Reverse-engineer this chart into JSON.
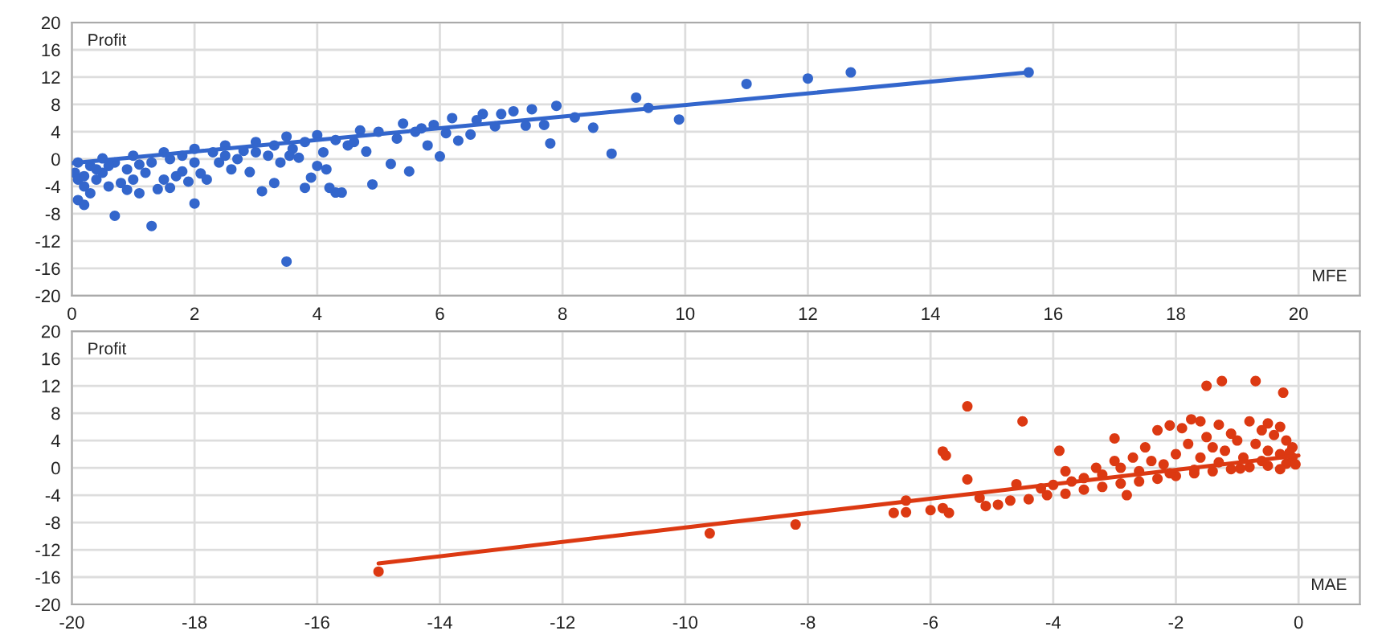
{
  "chart_data": [
    {
      "type": "scatter",
      "xlabel": "MFE",
      "ylabel": "Profit",
      "grid": true,
      "xlim": [
        0,
        21
      ],
      "xticks": [
        0,
        2,
        4,
        6,
        8,
        10,
        12,
        14,
        16,
        18,
        20
      ],
      "ylim": [
        -20,
        20
      ],
      "yticks": [
        -20,
        -16,
        -12,
        -8,
        -4,
        0,
        4,
        8,
        12,
        16,
        20
      ],
      "series": [
        {
          "marker": "circle",
          "color": "#3366cc",
          "x": [
            3.5,
            1.3,
            0.7,
            2.0,
            0.1,
            0.2,
            12.7,
            12.0,
            11.0,
            15.6,
            9.2,
            9.4,
            9.9,
            8.8,
            8.5,
            7.9,
            7.8,
            8.2,
            7.5,
            7.2,
            7.0,
            6.7,
            6.3,
            6.0,
            5.8,
            5.9,
            5.4,
            5.5,
            4.9,
            5.2,
            4.4,
            4.3,
            4.2,
            3.8,
            3.9,
            3.1,
            3.3,
            2.9,
            4.8,
            5.0,
            4.7,
            6.2,
            6.6,
            7.4,
            7.7,
            6.9,
            5.6,
            6.5,
            3.5,
            4.0,
            4.5,
            3.0,
            2.5,
            2.0,
            1.5,
            1.0,
            0.5,
            0.1,
            0.05,
            0.1,
            0.2,
            0.3,
            0.4,
            0.5,
            0.6,
            0.8,
            0.9,
            1.0,
            1.1,
            1.2,
            1.4,
            1.5,
            1.6,
            1.7,
            1.8,
            1.9,
            2.1,
            2.2,
            2.4,
            2.6,
            2.7,
            2.8,
            3.2,
            3.4,
            3.6,
            3.7,
            4.1,
            4.6,
            0.3,
            0.7,
            1.3,
            1.8,
            2.3,
            0.2,
            0.4,
            0.6,
            0.9,
            1.1,
            1.6,
            2.0,
            2.5,
            3.0,
            3.3,
            3.8,
            4.3,
            5.3,
            5.7,
            6.1,
            4.0,
            4.15,
            3.55
          ],
          "values": [
            -15,
            -9.8,
            -8.3,
            -6.5,
            -6.0,
            -6.7,
            12.7,
            11.8,
            11.0,
            12.7,
            9.0,
            7.5,
            5.8,
            0.8,
            4.6,
            7.8,
            2.3,
            6.1,
            7.3,
            7.0,
            6.6,
            6.6,
            2.7,
            0.4,
            2.0,
            5.0,
            5.2,
            -1.8,
            -3.7,
            -0.7,
            -4.9,
            -4.9,
            -4.2,
            -4.2,
            -2.7,
            -4.7,
            -3.5,
            -1.9,
            1.1,
            4.0,
            4.2,
            6.0,
            5.7,
            4.9,
            5.0,
            4.8,
            4.0,
            3.6,
            3.3,
            3.5,
            2.0,
            2.5,
            2.0,
            1.5,
            1.0,
            0.5,
            0.1,
            -0.5,
            -2,
            -3,
            -4,
            -5,
            -3,
            -2,
            -4,
            -3.5,
            -4.5,
            -3,
            -5,
            -2,
            -4.4,
            -3,
            -4.2,
            -2.5,
            -1.8,
            -3.3,
            -2.1,
            -3.0,
            -0.5,
            -1.5,
            0,
            1.2,
            0.5,
            -0.5,
            1.5,
            0.2,
            1.0,
            2.5,
            -1,
            -0.5,
            -0.5,
            0.5,
            1.0,
            -2.5,
            -1.5,
            -1,
            -1.5,
            -0.8,
            0,
            -0.5,
            0.5,
            1.0,
            2.0,
            2.5,
            2.8,
            3.0,
            4.5,
            3.8,
            -1.0,
            -1.5,
            0.5
          ]
        },
        {
          "type": "line",
          "marker": "none",
          "color": "#3366cc",
          "x": [
            0,
            15.6
          ],
          "values": [
            -0.6,
            12.7
          ]
        }
      ]
    },
    {
      "type": "scatter",
      "xlabel": "MAE",
      "ylabel": "Profit",
      "grid": true,
      "xlim": [
        -20,
        1
      ],
      "xticks": [
        -20,
        -18,
        -16,
        -14,
        -12,
        -10,
        -8,
        -6,
        -4,
        -2,
        0
      ],
      "ylim": [
        -20,
        20
      ],
      "yticks": [
        -20,
        -16,
        -12,
        -8,
        -4,
        0,
        4,
        8,
        12,
        16,
        20
      ],
      "series": [
        {
          "marker": "circle",
          "color": "#dc3912",
          "x": [
            -15,
            -9.6,
            -8.2,
            -6.6,
            -6.4,
            -6.4,
            -6.0,
            -5.8,
            -5.7,
            -5.8,
            -5.75,
            -5.4,
            -4.5,
            -3.9,
            -5.4,
            -5.2,
            -5.1,
            -4.9,
            -4.6,
            -3.8,
            -3.0,
            -3.0,
            -2.8,
            -1.5,
            -1.25,
            -0.7,
            -0.25,
            -1.75,
            -1.6,
            -2.3,
            -2.1,
            -1.3,
            -0.8,
            -0.5,
            -0.3,
            -4.7,
            -4.4,
            -4.1,
            -3.8,
            -3.5,
            -3.2,
            -2.9,
            -2.6,
            -2.3,
            -2.0,
            -1.7,
            -1.4,
            -1.1,
            -0.8,
            -0.5,
            -0.2,
            -0.1,
            -0.1,
            -0.2,
            -0.3,
            -0.5,
            -0.7,
            -0.9,
            -1.0,
            -1.2,
            -1.4,
            -1.6,
            -1.8,
            -2.0,
            -2.2,
            -2.4,
            -2.6,
            -2.9,
            -3.2,
            -3.5,
            -3.7,
            -4.0,
            -4.2,
            -0.05,
            -0.15,
            -0.4,
            -0.6,
            -1.1,
            -1.5,
            -1.9,
            -2.5,
            -2.7,
            -3.3,
            -0.3,
            -0.6,
            -1.3,
            -1.7,
            -2.1,
            -0.95
          ],
          "values": [
            -15.2,
            -9.6,
            -8.3,
            -6.6,
            -6.5,
            -4.8,
            -6.2,
            -5.9,
            -6.6,
            2.4,
            1.8,
            9.0,
            6.8,
            2.5,
            -1.7,
            -4.4,
            -5.6,
            -5.4,
            -2.4,
            -0.5,
            1.0,
            4.3,
            -4.0,
            12.0,
            12.7,
            12.7,
            11.0,
            7.1,
            6.8,
            5.5,
            6.2,
            6.3,
            6.8,
            6.5,
            6.0,
            -4.8,
            -4.6,
            -4.0,
            -3.8,
            -3.2,
            -2.8,
            -2.3,
            -2.0,
            -1.6,
            -1.2,
            -0.8,
            -0.5,
            -0.2,
            0.1,
            0.3,
            0.6,
            1.5,
            3,
            4,
            2,
            2.5,
            3.5,
            1.5,
            4,
            2.5,
            3,
            1.5,
            3.5,
            2,
            0.5,
            1,
            -0.5,
            0,
            -1,
            -1.5,
            -2.0,
            -2.5,
            -3,
            0.5,
            2.2,
            4.8,
            5.5,
            5.0,
            4.5,
            5.8,
            3.0,
            1.5,
            0,
            -0.2,
            1.0,
            0.8,
            -0.3,
            -0.8,
            -0.1
          ]
        },
        {
          "type": "line",
          "marker": "none",
          "color": "#dc3912",
          "x": [
            -15,
            0
          ],
          "values": [
            -14,
            1.8
          ]
        }
      ]
    }
  ]
}
